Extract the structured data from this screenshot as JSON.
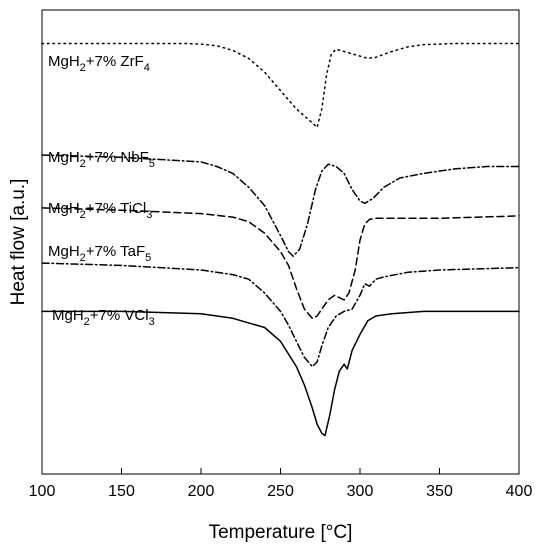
{
  "chart_data": {
    "type": "line",
    "xlabel": "Temperature [°C]",
    "ylabel": "Heat flow [a.u.]",
    "xlim": [
      100,
      400
    ],
    "xticks": [
      100,
      150,
      200,
      250,
      300,
      350,
      400
    ],
    "grid": false,
    "series": [
      {
        "key": "zrf4",
        "label_parts": [
          "MgH",
          "2",
          "+7% ZrF",
          "4"
        ],
        "style": "dotted",
        "points": [
          [
            100,
            -1.5
          ],
          [
            150,
            -1.5
          ],
          [
            190,
            -1.5
          ],
          [
            200,
            -1.8
          ],
          [
            210,
            -2.5
          ],
          [
            220,
            -4.5
          ],
          [
            230,
            -8
          ],
          [
            240,
            -14
          ],
          [
            250,
            -22
          ],
          [
            260,
            -30
          ],
          [
            265,
            -33
          ],
          [
            270,
            -36
          ],
          [
            273,
            -38
          ],
          [
            276,
            -30
          ],
          [
            279,
            -15
          ],
          [
            282,
            -6
          ],
          [
            285,
            -4
          ],
          [
            290,
            -5
          ],
          [
            300,
            -7
          ],
          [
            305,
            -8
          ],
          [
            310,
            -7.5
          ],
          [
            320,
            -5
          ],
          [
            330,
            -3
          ],
          [
            340,
            -2
          ],
          [
            360,
            -1.5
          ],
          [
            400,
            -1.5
          ]
        ]
      },
      {
        "key": "nbf5",
        "label_parts": [
          "MgH",
          "2",
          "+7% NbF",
          "5"
        ],
        "style": "dashdot",
        "points": [
          [
            100,
            -50
          ],
          [
            150,
            -51
          ],
          [
            200,
            -53
          ],
          [
            210,
            -55
          ],
          [
            220,
            -58
          ],
          [
            230,
            -64
          ],
          [
            240,
            -72
          ],
          [
            250,
            -85
          ],
          [
            255,
            -92
          ],
          [
            258,
            -94
          ],
          [
            262,
            -91
          ],
          [
            267,
            -80
          ],
          [
            272,
            -65
          ],
          [
            276,
            -57
          ],
          [
            280,
            -54
          ],
          [
            285,
            -55
          ],
          [
            290,
            -58
          ],
          [
            295,
            -65
          ],
          [
            300,
            -70
          ],
          [
            303,
            -71
          ],
          [
            308,
            -69
          ],
          [
            315,
            -64
          ],
          [
            325,
            -60
          ],
          [
            340,
            -58
          ],
          [
            360,
            -56
          ],
          [
            380,
            -55
          ],
          [
            400,
            -55
          ]
        ]
      },
      {
        "key": "ticl3",
        "label_parts": [
          "MgH",
          "2",
          "+7% TiCl",
          "3"
        ],
        "style": "dashed",
        "points": [
          [
            100,
            -73
          ],
          [
            150,
            -74
          ],
          [
            200,
            -75.5
          ],
          [
            220,
            -77
          ],
          [
            230,
            -79
          ],
          [
            240,
            -84
          ],
          [
            250,
            -92
          ],
          [
            255,
            -98
          ],
          [
            260,
            -108
          ],
          [
            265,
            -117
          ],
          [
            270,
            -121
          ],
          [
            273,
            -120
          ],
          [
            277,
            -116
          ],
          [
            280,
            -113
          ],
          [
            284,
            -111
          ],
          [
            287,
            -112
          ],
          [
            290,
            -113
          ],
          [
            293,
            -110
          ],
          [
            297,
            -100
          ],
          [
            300,
            -87
          ],
          [
            303,
            -80
          ],
          [
            306,
            -78
          ],
          [
            310,
            -77.5
          ],
          [
            350,
            -77.5
          ],
          [
            400,
            -76.5
          ]
        ]
      },
      {
        "key": "taf5",
        "label_parts": [
          "MgH",
          "2",
          "+7% TaF",
          "5"
        ],
        "style": "dashdot",
        "points": [
          [
            100,
            -97
          ],
          [
            150,
            -98
          ],
          [
            200,
            -100
          ],
          [
            220,
            -102
          ],
          [
            230,
            -104
          ],
          [
            240,
            -110
          ],
          [
            250,
            -118
          ],
          [
            255,
            -124
          ],
          [
            260,
            -131
          ],
          [
            265,
            -138
          ],
          [
            270,
            -142
          ],
          [
            273,
            -140
          ],
          [
            276,
            -133
          ],
          [
            280,
            -125
          ],
          [
            285,
            -120
          ],
          [
            290,
            -118
          ],
          [
            295,
            -117
          ],
          [
            300,
            -111
          ],
          [
            303,
            -106
          ],
          [
            306,
            -107
          ],
          [
            310,
            -104
          ],
          [
            315,
            -103
          ],
          [
            330,
            -101
          ],
          [
            350,
            -100
          ],
          [
            400,
            -99
          ]
        ]
      },
      {
        "key": "vcl3",
        "label_parts": [
          "MgH",
          "2",
          "+7% VCl",
          "3"
        ],
        "style": "solid",
        "points": [
          [
            100,
            -118
          ],
          [
            150,
            -118
          ],
          [
            200,
            -119
          ],
          [
            220,
            -121
          ],
          [
            240,
            -125
          ],
          [
            250,
            -131
          ],
          [
            260,
            -142
          ],
          [
            265,
            -150
          ],
          [
            270,
            -160
          ],
          [
            273,
            -167
          ],
          [
            276,
            -171
          ],
          [
            278,
            -172
          ],
          [
            281,
            -163
          ],
          [
            284,
            -152
          ],
          [
            287,
            -144
          ],
          [
            290,
            -141
          ],
          [
            292,
            -143
          ],
          [
            295,
            -135
          ],
          [
            300,
            -128
          ],
          [
            305,
            -122
          ],
          [
            310,
            -120
          ],
          [
            320,
            -119
          ],
          [
            340,
            -118
          ],
          [
            400,
            -118
          ]
        ]
      }
    ]
  }
}
